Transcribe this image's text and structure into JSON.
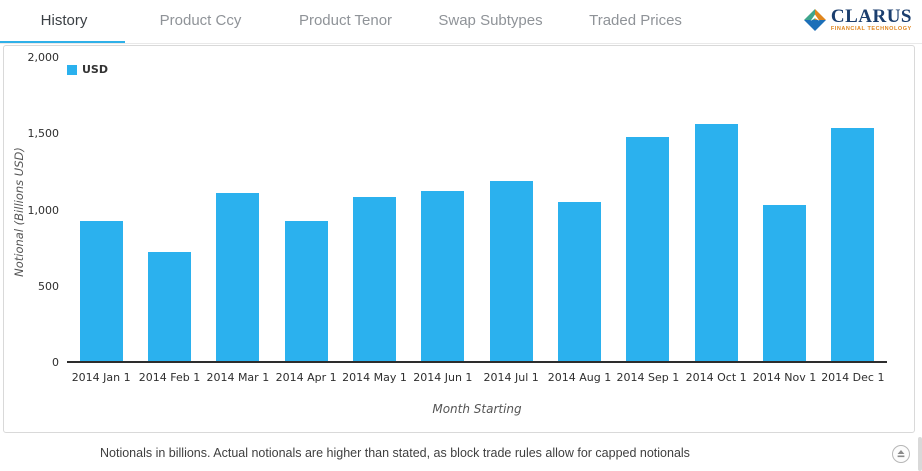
{
  "header": {
    "tabs": [
      {
        "label": "History",
        "active": true
      },
      {
        "label": "Product Ccy",
        "active": false
      },
      {
        "label": "Product Tenor",
        "active": false
      },
      {
        "label": "Swap Subtypes",
        "active": false
      },
      {
        "label": "Traded Prices",
        "active": false
      }
    ],
    "logo": {
      "title": "CLARUS",
      "subtitle": "FINANCIAL TECHNOLOGY"
    }
  },
  "chart_data": {
    "type": "bar",
    "title": "",
    "categories": [
      "2014 Jan 1",
      "2014 Feb 1",
      "2014 Mar 1",
      "2014 Apr 1",
      "2014 May 1",
      "2014 Jun 1",
      "2014 Jul 1",
      "2014 Aug 1",
      "2014 Sep 1",
      "2014 Oct 1",
      "2014 Nov 1",
      "2014 Dec 1"
    ],
    "series": [
      {
        "name": "USD",
        "color": "#2bb1ee",
        "values": [
          920,
          715,
          1100,
          915,
          1075,
          1115,
          1180,
          1040,
          1470,
          1555,
          1020,
          1530
        ]
      }
    ],
    "xlabel": "Month Starting",
    "ylabel": "Notional (Billions USD)",
    "ylim": [
      0,
      2000
    ],
    "yticks": [
      {
        "value": 0,
        "label": "0"
      },
      {
        "value": 500,
        "label": "500"
      },
      {
        "value": 1000,
        "label": "1,000"
      },
      {
        "value": 1500,
        "label": "1,500"
      },
      {
        "value": 2000,
        "label": "2,000"
      }
    ],
    "legend": {
      "position": "top-left",
      "items": [
        {
          "label": "USD",
          "color": "#2bb1ee"
        }
      ]
    },
    "grid": false
  },
  "footer": {
    "note": "Notionals in billions. Actual notionals are higher than stated, as block trade rules allow for capped notionals"
  },
  "colors": {
    "accent_blue": "#2bb1ee",
    "active_tab_underline": "#2fb0e8",
    "axis_line": "#2d2d2d",
    "logo_navy": "#1b3e6e",
    "logo_orange": "#e0861e",
    "logo_teal": "#3fa58c",
    "logo_blue": "#1c6fb8"
  }
}
